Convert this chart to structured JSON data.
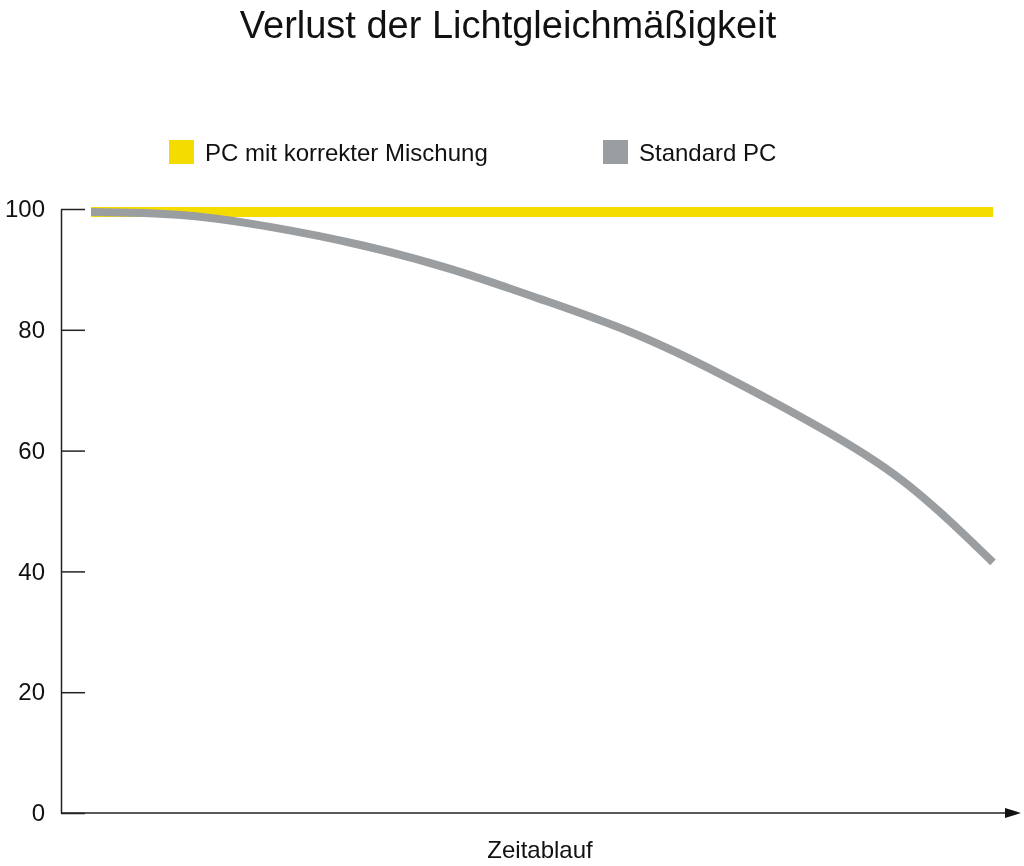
{
  "chart_data": {
    "type": "line",
    "title": "Verlust der Lichtgleichmäßigkeit",
    "xlabel": "Zeitablauf",
    "categories": [
      null,
      null,
      null,
      null,
      null,
      null,
      null,
      null,
      null,
      null,
      null
    ],
    "series": [
      {
        "name": "PC mit korrekter Mischung",
        "color": "#f4dc00",
        "values": [
          99.5,
          99.5,
          99.5,
          99.5,
          99.5,
          99.5,
          99.5,
          99.5,
          99.5,
          99.5,
          99.5
        ]
      },
      {
        "name": "Standard PC",
        "color": "#9b9ea1",
        "values": [
          99.5,
          99,
          97,
          94,
          90,
          85,
          79.5,
          72.5,
          64.5,
          55,
          41.5
        ]
      }
    ],
    "ylim": [
      0,
      100
    ],
    "yticks": [
      0,
      20,
      40,
      60,
      80,
      100
    ],
    "legend": "top",
    "tick_labels": "y",
    "line_style": "solid"
  }
}
